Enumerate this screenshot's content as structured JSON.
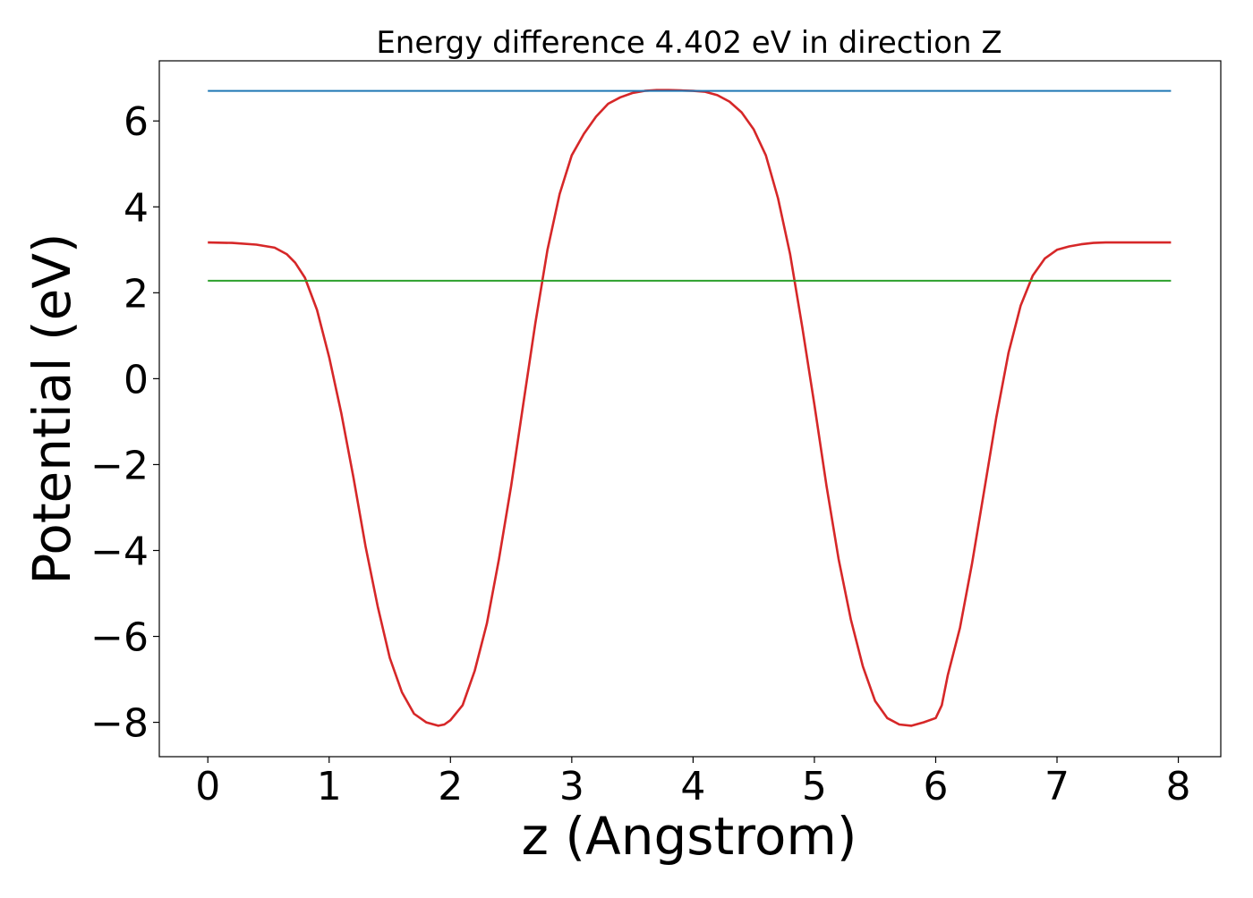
{
  "chart_data": {
    "type": "line",
    "title": "Energy difference 4.402 eV in direction Z",
    "xlabel": "z (Angstrom)",
    "ylabel": "Potential (eV)",
    "xlim": [
      -0.4,
      8.35
    ],
    "ylim": [
      -8.8,
      7.4
    ],
    "x_ticks": [
      0,
      1,
      2,
      3,
      4,
      5,
      6,
      7,
      8
    ],
    "x_tick_labels": [
      "0",
      "1",
      "2",
      "3",
      "4",
      "5",
      "6",
      "7",
      "8"
    ],
    "y_ticks": [
      -8,
      -6,
      -4,
      -2,
      0,
      2,
      4,
      6
    ],
    "y_tick_labels": [
      "−8",
      "−6",
      "−4",
      "−2",
      "0",
      "2",
      "4",
      "6"
    ],
    "grid": false,
    "series": [
      {
        "color": "#d62728",
        "x": [
          0,
          0.2,
          0.4,
          0.55,
          0.65,
          0.72,
          0.8,
          0.9,
          1.0,
          1.1,
          1.2,
          1.3,
          1.4,
          1.5,
          1.6,
          1.7,
          1.8,
          1.9,
          1.95,
          2.0,
          2.1,
          2.2,
          2.3,
          2.4,
          2.5,
          2.6,
          2.7,
          2.8,
          2.9,
          3.0,
          3.1,
          3.2,
          3.3,
          3.4,
          3.5,
          3.6,
          3.7,
          3.8,
          3.9,
          4.0,
          4.1,
          4.2,
          4.3,
          4.4,
          4.5,
          4.6,
          4.7,
          4.8,
          4.9,
          5.0,
          5.1,
          5.2,
          5.3,
          5.4,
          5.5,
          5.6,
          5.7,
          5.8,
          5.9,
          6.0,
          6.05,
          6.1,
          6.2,
          6.3,
          6.4,
          6.5,
          6.6,
          6.7,
          6.8,
          6.9,
          7.0,
          7.1,
          7.2,
          7.3,
          7.4,
          7.55,
          7.7,
          7.9,
          7.94
        ],
        "y": [
          3.17,
          3.16,
          3.12,
          3.05,
          2.9,
          2.7,
          2.35,
          1.6,
          0.5,
          -0.8,
          -2.3,
          -3.9,
          -5.3,
          -6.5,
          -7.3,
          -7.8,
          -8.0,
          -8.08,
          -8.05,
          -7.95,
          -7.6,
          -6.8,
          -5.7,
          -4.2,
          -2.5,
          -0.6,
          1.3,
          3.0,
          4.3,
          5.2,
          5.7,
          6.1,
          6.4,
          6.55,
          6.65,
          6.7,
          6.72,
          6.72,
          6.71,
          6.7,
          6.68,
          6.6,
          6.45,
          6.2,
          5.8,
          5.2,
          4.2,
          2.9,
          1.2,
          -0.6,
          -2.5,
          -4.2,
          -5.6,
          -6.7,
          -7.5,
          -7.9,
          -8.05,
          -8.08,
          -8.0,
          -7.9,
          -7.6,
          -6.9,
          -5.8,
          -4.3,
          -2.6,
          -0.9,
          0.6,
          1.7,
          2.4,
          2.8,
          3.0,
          3.08,
          3.13,
          3.16,
          3.17,
          3.17,
          3.17,
          3.17,
          3.17
        ]
      },
      {
        "color": "#1f77b4",
        "x": [
          0,
          7.94
        ],
        "y": [
          6.7,
          6.7
        ]
      },
      {
        "color": "#2ca02c",
        "x": [
          0,
          7.94
        ],
        "y": [
          2.28,
          2.28
        ]
      }
    ]
  }
}
